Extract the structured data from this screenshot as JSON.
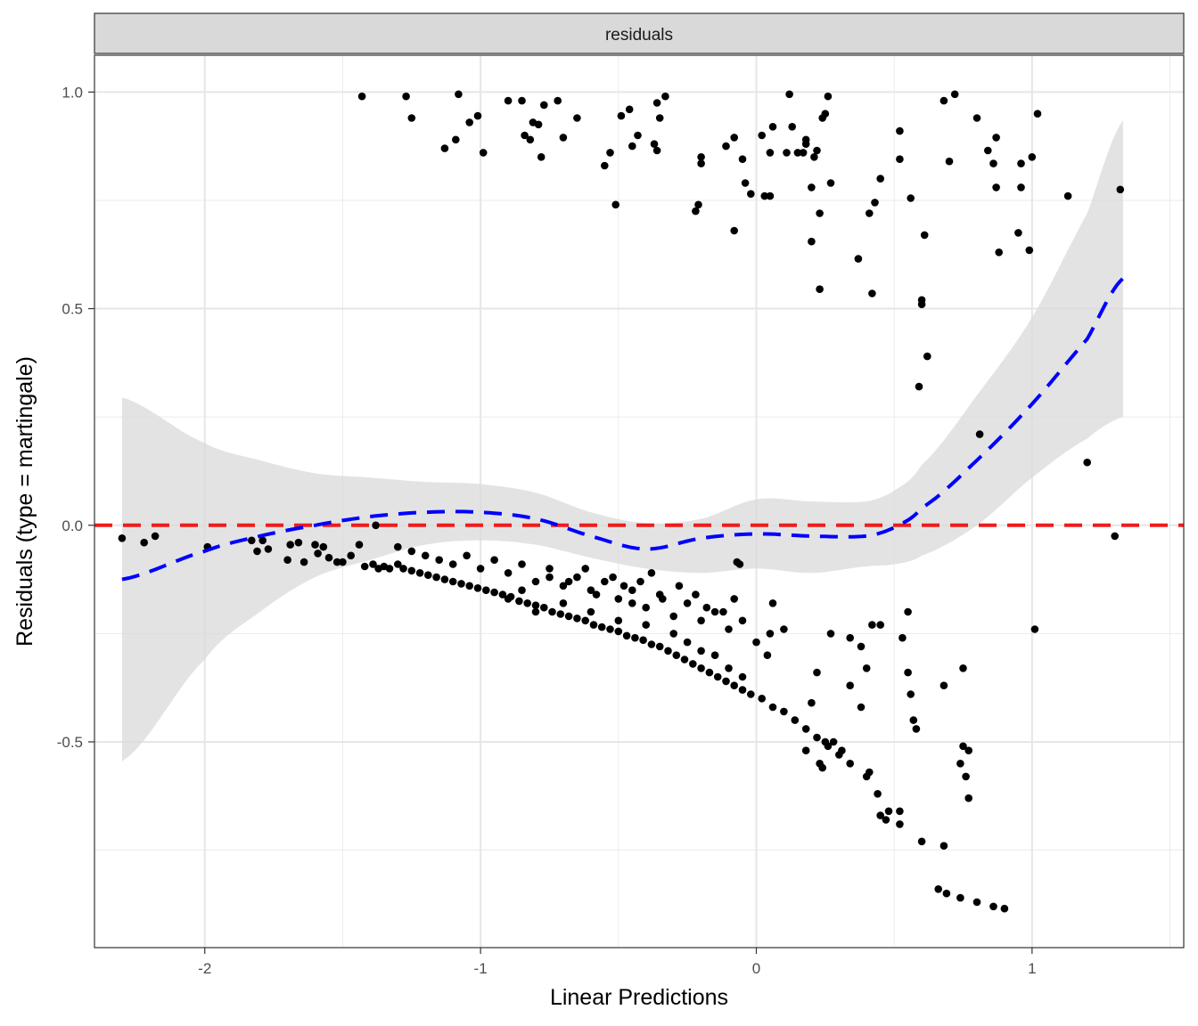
{
  "chart_data": {
    "type": "scatter",
    "facet_label": "residuals",
    "xlabel": "Linear Predictions",
    "ylabel": "Residuals (type = martingale)",
    "xlim": [
      -2.4,
      1.55
    ],
    "ylim": [
      -0.975,
      1.085
    ],
    "x_ticks": [
      {
        "value": -2,
        "label": "-2"
      },
      {
        "value": -1,
        "label": "-1"
      },
      {
        "value": 0,
        "label": "0"
      },
      {
        "value": 1,
        "label": "1"
      }
    ],
    "y_ticks": [
      {
        "value": -0.5,
        "label": "-0.5"
      },
      {
        "value": 0.0,
        "label": "0.0"
      },
      {
        "value": 0.5,
        "label": "0.5"
      },
      {
        "value": 1.0,
        "label": "1.0"
      }
    ],
    "grid": true,
    "reference_line": {
      "y": 0,
      "color": "#ee1c1c",
      "style": "dashed"
    },
    "smooth": {
      "color": "#0000ff",
      "style": "dashed",
      "band_color": "#d9d9d9",
      "x": [
        -2.3,
        -2.0,
        -1.8,
        -1.6,
        -1.4,
        -1.2,
        -1.0,
        -0.8,
        -0.6,
        -0.4,
        -0.2,
        0.0,
        0.2,
        0.4,
        0.5,
        0.6,
        0.8,
        1.0,
        1.2,
        1.33
      ],
      "y": [
        -0.125,
        -0.06,
        -0.025,
        0.0,
        0.02,
        0.03,
        0.03,
        0.015,
        -0.025,
        -0.055,
        -0.03,
        -0.02,
        -0.025,
        -0.025,
        -0.005,
        0.04,
        0.15,
        0.28,
        0.43,
        0.57
      ],
      "lower": [
        -0.545,
        -0.31,
        -0.2,
        -0.12,
        -0.08,
        -0.045,
        -0.035,
        -0.045,
        -0.075,
        -0.1,
        -0.11,
        -0.1,
        -0.11,
        -0.095,
        -0.09,
        -0.07,
        0.0,
        0.11,
        0.2,
        0.25
      ],
      "upper": [
        0.295,
        0.19,
        0.15,
        0.12,
        0.11,
        0.1,
        0.095,
        0.075,
        0.03,
        0.005,
        0.015,
        0.06,
        0.055,
        0.055,
        0.08,
        0.14,
        0.3,
        0.48,
        0.72,
        0.935
      ]
    },
    "points": [
      [
        -2.3,
        -0.03
      ],
      [
        -2.22,
        -0.04
      ],
      [
        -2.18,
        -0.025
      ],
      [
        -1.99,
        -0.05
      ],
      [
        -1.83,
        -0.035
      ],
      [
        -1.81,
        -0.06
      ],
      [
        -1.79,
        -0.035
      ],
      [
        -1.77,
        -0.055
      ],
      [
        -1.7,
        -0.08
      ],
      [
        -1.69,
        -0.045
      ],
      [
        -1.66,
        -0.04
      ],
      [
        -1.64,
        -0.085
      ],
      [
        -1.6,
        -0.045
      ],
      [
        -1.59,
        -0.065
      ],
      [
        -1.57,
        -0.05
      ],
      [
        -1.55,
        -0.075
      ],
      [
        -1.52,
        -0.085
      ],
      [
        -1.5,
        -0.085
      ],
      [
        -1.47,
        -0.07
      ],
      [
        -1.44,
        -0.045
      ],
      [
        -1.42,
        -0.095
      ],
      [
        -1.39,
        -0.09
      ],
      [
        -1.37,
        -0.1
      ],
      [
        -1.35,
        -0.095
      ],
      [
        -1.33,
        -0.1
      ],
      [
        -1.3,
        -0.09
      ],
      [
        -1.28,
        -0.1
      ],
      [
        -1.25,
        -0.105
      ],
      [
        -1.22,
        -0.11
      ],
      [
        -1.19,
        -0.115
      ],
      [
        -1.16,
        -0.12
      ],
      [
        -1.13,
        -0.125
      ],
      [
        -1.1,
        -0.13
      ],
      [
        -1.07,
        -0.135
      ],
      [
        -1.04,
        -0.14
      ],
      [
        -1.01,
        -0.145
      ],
      [
        -0.98,
        -0.15
      ],
      [
        -0.95,
        -0.155
      ],
      [
        -0.92,
        -0.16
      ],
      [
        -0.89,
        -0.165
      ],
      [
        -0.86,
        -0.175
      ],
      [
        -0.83,
        -0.18
      ],
      [
        -0.8,
        -0.185
      ],
      [
        -0.77,
        -0.19
      ],
      [
        -0.74,
        -0.2
      ],
      [
        -0.71,
        -0.205
      ],
      [
        -0.68,
        -0.21
      ],
      [
        -0.65,
        -0.215
      ],
      [
        -0.62,
        -0.22
      ],
      [
        -0.59,
        -0.23
      ],
      [
        -0.56,
        -0.235
      ],
      [
        -0.53,
        -0.24
      ],
      [
        -0.5,
        -0.245
      ],
      [
        -0.47,
        -0.255
      ],
      [
        -0.44,
        -0.26
      ],
      [
        -0.41,
        -0.265
      ],
      [
        -0.38,
        -0.275
      ],
      [
        -0.35,
        -0.28
      ],
      [
        -0.32,
        -0.29
      ],
      [
        -0.29,
        -0.3
      ],
      [
        -0.26,
        -0.31
      ],
      [
        -0.23,
        -0.32
      ],
      [
        -0.2,
        -0.33
      ],
      [
        -0.17,
        -0.34
      ],
      [
        -0.14,
        -0.35
      ],
      [
        -0.11,
        -0.36
      ],
      [
        -0.08,
        -0.37
      ],
      [
        -0.05,
        -0.38
      ],
      [
        -0.02,
        -0.39
      ],
      [
        0.02,
        -0.4
      ],
      [
        0.06,
        -0.42
      ],
      [
        0.1,
        -0.43
      ],
      [
        0.14,
        -0.45
      ],
      [
        0.18,
        -0.47
      ],
      [
        0.22,
        -0.49
      ],
      [
        0.26,
        -0.51
      ],
      [
        0.3,
        -0.53
      ],
      [
        0.34,
        -0.55
      ],
      [
        0.4,
        -0.58
      ],
      [
        0.44,
        -0.62
      ],
      [
        0.48,
        -0.66
      ],
      [
        0.52,
        -0.69
      ],
      [
        0.6,
        -0.73
      ],
      [
        0.68,
        -0.74
      ],
      [
        0.74,
        -0.86
      ],
      [
        0.8,
        -0.87
      ],
      [
        0.86,
        -0.88
      ],
      [
        0.9,
        -0.885
      ],
      [
        0.66,
        -0.84
      ],
      [
        0.69,
        -0.85
      ],
      [
        -1.3,
        -0.05
      ],
      [
        -1.25,
        -0.06
      ],
      [
        -1.2,
        -0.07
      ],
      [
        -1.15,
        -0.08
      ],
      [
        -1.1,
        -0.09
      ],
      [
        -1.05,
        -0.07
      ],
      [
        -1.0,
        -0.1
      ],
      [
        -0.95,
        -0.08
      ],
      [
        -0.9,
        -0.11
      ],
      [
        -0.85,
        -0.09
      ],
      [
        -0.8,
        -0.13
      ],
      [
        -0.75,
        -0.1
      ],
      [
        -0.7,
        -0.14
      ],
      [
        -0.65,
        -0.12
      ],
      [
        -0.6,
        -0.15
      ],
      [
        -0.55,
        -0.13
      ],
      [
        -0.5,
        -0.17
      ],
      [
        -0.45,
        -0.15
      ],
      [
        -0.4,
        -0.19
      ],
      [
        -0.35,
        -0.16
      ],
      [
        -0.3,
        -0.21
      ],
      [
        -0.25,
        -0.18
      ],
      [
        -0.2,
        -0.22
      ],
      [
        -0.15,
        -0.2
      ],
      [
        -0.1,
        -0.24
      ],
      [
        -0.05,
        -0.22
      ],
      [
        0.0,
        -0.27
      ],
      [
        0.05,
        -0.25
      ],
      [
        -0.9,
        -0.17
      ],
      [
        -0.85,
        -0.15
      ],
      [
        -0.8,
        -0.2
      ],
      [
        -0.7,
        -0.18
      ],
      [
        -0.6,
        -0.2
      ],
      [
        -0.5,
        -0.22
      ],
      [
        -0.45,
        -0.18
      ],
      [
        -0.4,
        -0.23
      ],
      [
        -0.3,
        -0.25
      ],
      [
        -0.25,
        -0.27
      ],
      [
        -0.2,
        -0.29
      ],
      [
        -0.15,
        -0.3
      ],
      [
        -0.1,
        -0.33
      ],
      [
        -0.05,
        -0.35
      ],
      [
        -0.75,
        -0.12
      ],
      [
        -0.68,
        -0.13
      ],
      [
        -0.62,
        -0.1
      ],
      [
        -0.58,
        -0.16
      ],
      [
        -0.52,
        -0.12
      ],
      [
        -0.48,
        -0.14
      ],
      [
        -0.42,
        -0.13
      ],
      [
        -0.38,
        -0.11
      ],
      [
        -0.34,
        -0.17
      ],
      [
        -0.28,
        -0.14
      ],
      [
        -0.22,
        -0.16
      ],
      [
        -0.18,
        -0.19
      ],
      [
        -0.12,
        -0.2
      ],
      [
        -0.08,
        -0.17
      ],
      [
        -0.06,
        -0.09
      ],
      [
        -0.07,
        -0.085
      ],
      [
        0.06,
        -0.18
      ],
      [
        0.04,
        -0.3
      ],
      [
        0.1,
        -0.24
      ],
      [
        0.2,
        -0.41
      ],
      [
        0.27,
        -0.25
      ],
      [
        0.22,
        -0.34
      ],
      [
        0.34,
        -0.26
      ],
      [
        0.38,
        -0.28
      ],
      [
        0.4,
        -0.33
      ],
      [
        0.42,
        -0.23
      ],
      [
        0.45,
        -0.23
      ],
      [
        0.34,
        -0.37
      ],
      [
        0.38,
        -0.42
      ],
      [
        0.41,
        -0.57
      ],
      [
        0.52,
        -0.66
      ],
      [
        0.53,
        -0.26
      ],
      [
        0.55,
        -0.2
      ],
      [
        0.55,
        -0.34
      ],
      [
        0.56,
        -0.39
      ],
      [
        0.58,
        -0.47
      ],
      [
        0.57,
        -0.45
      ],
      [
        0.68,
        -0.37
      ],
      [
        0.75,
        -0.33
      ],
      [
        0.74,
        -0.55
      ],
      [
        0.75,
        -0.51
      ],
      [
        0.77,
        -0.52
      ],
      [
        0.76,
        -0.58
      ],
      [
        0.77,
        -0.63
      ],
      [
        1.01,
        -0.24
      ],
      [
        1.3,
        -0.025
      ],
      [
        -1.38,
        0.0
      ],
      [
        0.18,
        -0.52
      ],
      [
        0.25,
        -0.5
      ],
      [
        0.28,
        -0.5
      ],
      [
        0.31,
        -0.52
      ],
      [
        0.23,
        -0.55
      ],
      [
        0.24,
        -0.56
      ],
      [
        0.45,
        -0.67
      ],
      [
        0.47,
        -0.68
      ],
      [
        -1.43,
        0.99
      ],
      [
        -1.27,
        0.99
      ],
      [
        -1.25,
        0.94
      ],
      [
        -1.13,
        0.87
      ],
      [
        -1.09,
        0.89
      ],
      [
        -1.08,
        0.995
      ],
      [
        -1.04,
        0.93
      ],
      [
        -1.01,
        0.945
      ],
      [
        -0.99,
        0.86
      ],
      [
        -0.9,
        0.98
      ],
      [
        -0.85,
        0.98
      ],
      [
        -0.84,
        0.9
      ],
      [
        -0.82,
        0.89
      ],
      [
        -0.81,
        0.93
      ],
      [
        -0.79,
        0.925
      ],
      [
        -0.78,
        0.85
      ],
      [
        -0.77,
        0.97
      ],
      [
        -0.72,
        0.98
      ],
      [
        -0.7,
        0.895
      ],
      [
        -0.65,
        0.94
      ],
      [
        -0.55,
        0.83
      ],
      [
        -0.53,
        0.86
      ],
      [
        -0.51,
        0.74
      ],
      [
        -0.49,
        0.945
      ],
      [
        -0.46,
        0.96
      ],
      [
        -0.45,
        0.875
      ],
      [
        -0.43,
        0.9
      ],
      [
        -0.37,
        0.88
      ],
      [
        -0.36,
        0.865
      ],
      [
        -0.36,
        0.975
      ],
      [
        -0.35,
        0.94
      ],
      [
        -0.33,
        0.99
      ],
      [
        -0.22,
        0.725
      ],
      [
        -0.21,
        0.74
      ],
      [
        -0.2,
        0.85
      ],
      [
        -0.2,
        0.835
      ],
      [
        -0.11,
        0.875
      ],
      [
        -0.08,
        0.895
      ],
      [
        -0.08,
        0.68
      ],
      [
        -0.05,
        0.845
      ],
      [
        -0.04,
        0.79
      ],
      [
        -0.02,
        0.765
      ],
      [
        0.02,
        0.9
      ],
      [
        0.03,
        0.76
      ],
      [
        0.05,
        0.76
      ],
      [
        0.05,
        0.86
      ],
      [
        0.06,
        0.92
      ],
      [
        0.11,
        0.86
      ],
      [
        0.12,
        0.995
      ],
      [
        0.13,
        0.92
      ],
      [
        0.15,
        0.86
      ],
      [
        0.17,
        0.86
      ],
      [
        0.18,
        0.88
      ],
      [
        0.18,
        0.89
      ],
      [
        0.2,
        0.655
      ],
      [
        0.2,
        0.78
      ],
      [
        0.21,
        0.85
      ],
      [
        0.22,
        0.865
      ],
      [
        0.23,
        0.72
      ],
      [
        0.23,
        0.545
      ],
      [
        0.24,
        0.94
      ],
      [
        0.25,
        0.95
      ],
      [
        0.26,
        0.99
      ],
      [
        0.27,
        0.79
      ],
      [
        0.37,
        0.615
      ],
      [
        0.41,
        0.72
      ],
      [
        0.42,
        0.535
      ],
      [
        0.43,
        0.745
      ],
      [
        0.45,
        0.8
      ],
      [
        0.52,
        0.91
      ],
      [
        0.52,
        0.845
      ],
      [
        0.56,
        0.755
      ],
      [
        0.59,
        0.32
      ],
      [
        0.6,
        0.51
      ],
      [
        0.6,
        0.52
      ],
      [
        0.61,
        0.67
      ],
      [
        0.62,
        0.39
      ],
      [
        0.68,
        0.98
      ],
      [
        0.7,
        0.84
      ],
      [
        0.72,
        0.995
      ],
      [
        0.8,
        0.94
      ],
      [
        0.84,
        0.865
      ],
      [
        0.86,
        0.835
      ],
      [
        0.87,
        0.895
      ],
      [
        0.87,
        0.78
      ],
      [
        0.88,
        0.63
      ],
      [
        0.95,
        0.675
      ],
      [
        0.96,
        0.835
      ],
      [
        0.96,
        0.78
      ],
      [
        0.99,
        0.635
      ],
      [
        1.0,
        0.85
      ],
      [
        1.02,
        0.95
      ],
      [
        1.13,
        0.76
      ],
      [
        1.32,
        0.775
      ],
      [
        1.2,
        0.145
      ],
      [
        0.81,
        0.21
      ]
    ]
  }
}
